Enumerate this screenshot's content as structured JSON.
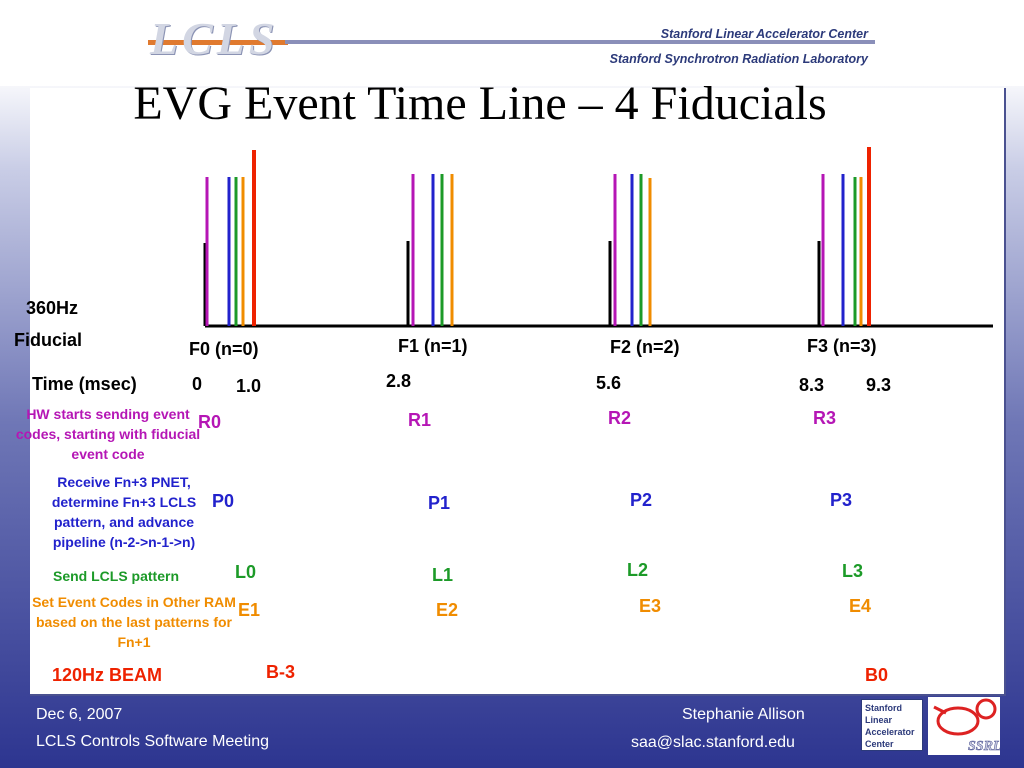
{
  "header": {
    "logo_text": "LCLS",
    "institution_1": "Stanford Linear Accelerator Center",
    "institution_2": "Stanford Synchrotron Radiation Laboratory"
  },
  "title": "EVG Event Time Line – 4 Fiducials",
  "axis": {
    "fiducial_label_1": "360Hz",
    "fiducial_label_2": "Fiducial",
    "time_label": "Time (msec)"
  },
  "fiducials": [
    {
      "label": "F0 (n=0)",
      "time": "0",
      "time2": "1.0",
      "r": "R0",
      "p": "P0",
      "l": "L0",
      "e": "E1"
    },
    {
      "label": "F1 (n=1)",
      "time": "2.8",
      "r": "R1",
      "p": "P1",
      "l": "L1",
      "e": "E2"
    },
    {
      "label": "F2 (n=2)",
      "time": "5.6",
      "r": "R2",
      "p": "P2",
      "l": "L2",
      "e": "E3"
    },
    {
      "label": "F3 (n=3)",
      "time": "8.3",
      "time2": "9.3",
      "r": "R3",
      "p": "P3",
      "l": "L3",
      "e": "E4"
    }
  ],
  "descriptions": {
    "hw_start": "HW starts sending event codes, starting with fiducial event code",
    "receive": "Receive Fn+3 PNET, determine Fn+3 LCLS pattern, and advance pipeline (n-2->n-1->n)",
    "send": "Send LCLS pattern",
    "set_codes": "Set Event Codes in Other RAM based on the last patterns for Fn+1"
  },
  "beam": {
    "label": "120Hz BEAM",
    "b_minus": "B-3",
    "b_zero": "B0"
  },
  "footer": {
    "date": "Dec 6, 2007",
    "meeting": "LCLS Controls Software Meeting",
    "author": "Stephanie Allison",
    "email": "saa@slac.stanford.edu",
    "badge_line1": "Stanford",
    "badge_line2": "Linear",
    "badge_line3": "Accelerator",
    "badge_line4": "Center",
    "ssrl": "SSRL"
  },
  "colors": {
    "fiducial": "#000000",
    "magenta": "#b516b5",
    "blue": "#2222cc",
    "green": "#1c9a28",
    "orange": "#f08c00",
    "red": "#ee2200",
    "background_dark": "#2d3590"
  }
}
